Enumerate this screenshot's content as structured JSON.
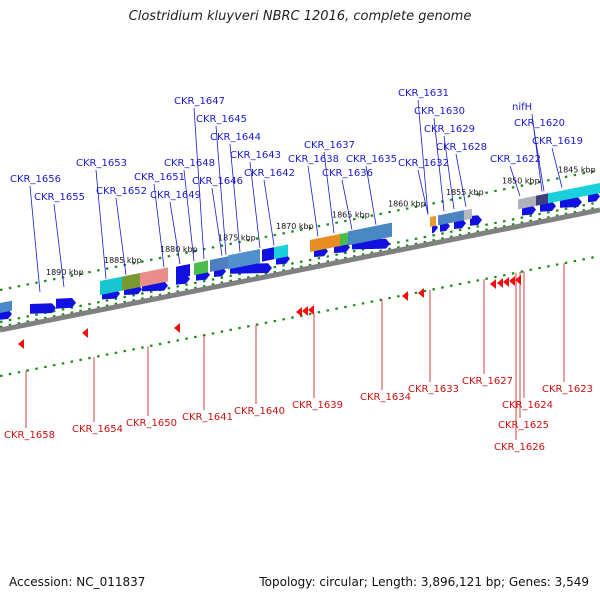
{
  "title": "Clostridium kluyveri NBRC 12016, complete genome",
  "footer": {
    "accession": "Accession: NC_011837",
    "summary": "Topology: circular; Length: 3,896,121 bp; Genes: 3,549"
  },
  "colors": {
    "upper_label": "#1a1acc",
    "lower_label": "#cc1010",
    "backbone": "#808080",
    "tick": "#1a8a1a",
    "gene_blue": "#1010e0",
    "gene_red": "#ee1111"
  },
  "scale_labels": [
    "1890 kbp",
    "1885 kbp",
    "1880 kbp",
    "1875 kbp",
    "1870 kbp",
    "1865 kbp",
    "1860 kbp",
    "1855 kbp",
    "1850 kbp",
    "1845 kbp"
  ],
  "upper_genes": [
    "CKR_1656",
    "CKR_1655",
    "CKR_1653",
    "CKR_1652",
    "CKR_1651",
    "CKR_1649",
    "CKR_1648",
    "CKR_1647",
    "CKR_1646",
    "CKR_1645",
    "CKR_1644",
    "CKR_1643",
    "CKR_1642",
    "CKR_1638",
    "CKR_1637",
    "CKR_1636",
    "CKR_1635",
    "CKR_1632",
    "CKR_1631",
    "CKR_1630",
    "CKR_1629",
    "CKR_1628",
    "CKR_1622",
    "nifH",
    "CKR_1620",
    "CKR_1619"
  ],
  "lower_genes": [
    "CKR_1658",
    "CKR_1654",
    "CKR_1650",
    "CKR_1641",
    "CKR_1640",
    "CKR_1639",
    "CKR_1634",
    "CKR_1633",
    "CKR_1627",
    "CKR_1624",
    "CKR_1625",
    "CKR_1626",
    "CKR_1623"
  ]
}
